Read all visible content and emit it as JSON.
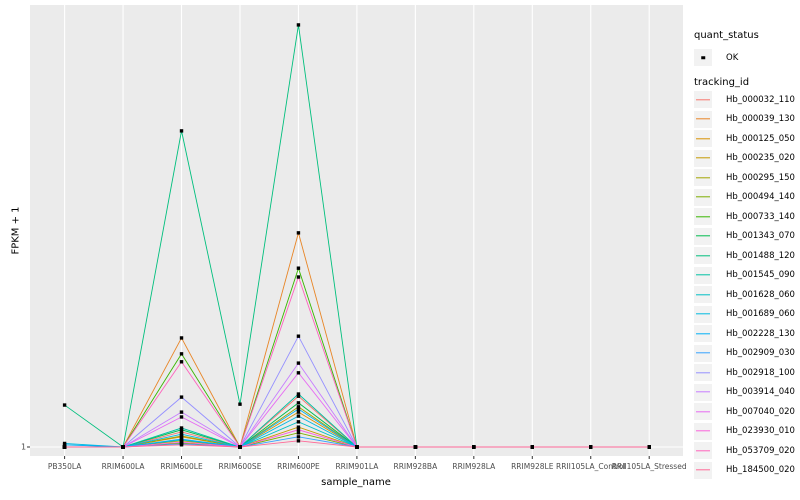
{
  "figure": {
    "background": "#FFFFFF",
    "panel_background": "#EBEBEB",
    "gridline_color": "#FFFFFF",
    "axis_text_color": "#4D4D4D",
    "point_color": "#000000"
  },
  "legend": {
    "quant_status_title": "quant_status",
    "quant_status_items": [
      {
        "label": "OK",
        "glyph": "black-point"
      }
    ],
    "tracking_id_title": "tracking_id"
  },
  "chart_data": {
    "type": "line",
    "title": "",
    "xlabel": "sample_name",
    "ylabel": "FPKM + 1",
    "y_ticks": [
      "1"
    ],
    "ylim_note": "only the value 1 is labeled on the y axis; series heights are stored as percent of panel height above the y=1 baseline",
    "grid": "gray panel with white major gridlines (ggplot style)",
    "legend_position": "right",
    "marker": {
      "shape": "small-black-square",
      "color": "#000000"
    },
    "categories": [
      "PB350LA",
      "RRIM600LA",
      "RRIM600LE",
      "RRIM600SE",
      "RRIM600PE",
      "RRIM901LA",
      "RRIM928BA",
      "RRIM928LA",
      "RRIM928LE",
      "RRII105LA_Control",
      "RRII105LA_Stressed"
    ],
    "series": [
      {
        "name": "Hb_000032_110",
        "color": "#F8766D",
        "values_pct": [
          0,
          0,
          3.4,
          0,
          11.5,
          0,
          0,
          0,
          0,
          0,
          0
        ]
      },
      {
        "name": "Hb_000039_130",
        "color": "#E88526",
        "values_pct": [
          0,
          0,
          24.7,
          0,
          48.5,
          0,
          0,
          0,
          0,
          0,
          0
        ]
      },
      {
        "name": "Hb_000125_050",
        "color": "#D89000",
        "values_pct": [
          0,
          0,
          2.3,
          0,
          7.9,
          0,
          0,
          0,
          0,
          0,
          0
        ]
      },
      {
        "name": "Hb_000235_020",
        "color": "#C49A00",
        "values_pct": [
          0,
          0,
          1.4,
          0,
          4.5,
          0,
          0,
          0,
          0,
          0,
          0
        ]
      },
      {
        "name": "Hb_000295_150",
        "color": "#A3A500",
        "values_pct": [
          0,
          0,
          2.5,
          0,
          9.1,
          0,
          0,
          0,
          0,
          0,
          0
        ]
      },
      {
        "name": "Hb_000494_140",
        "color": "#7CAE00",
        "values_pct": [
          0,
          0,
          0.9,
          0,
          3.2,
          0,
          0,
          0,
          0,
          0,
          0
        ]
      },
      {
        "name": "Hb_000733_140",
        "color": "#39B600",
        "values_pct": [
          0,
          0,
          21.1,
          0,
          40.5,
          0,
          0,
          0,
          0,
          0,
          0
        ]
      },
      {
        "name": "Hb_001343_070",
        "color": "#00BB4E",
        "values_pct": [
          0,
          0,
          3.9,
          0,
          10.0,
          0,
          0,
          0,
          0,
          0,
          0
        ]
      },
      {
        "name": "Hb_001488_120",
        "color": "#00BF7D",
        "values_pct": [
          9.5,
          0,
          71.6,
          9.7,
          95.6,
          0,
          0,
          0,
          0,
          0,
          0
        ]
      },
      {
        "name": "Hb_001545_090",
        "color": "#00C1A3",
        "values_pct": [
          0,
          0,
          4.3,
          0,
          12.0,
          0,
          0,
          0,
          0,
          0,
          0
        ]
      },
      {
        "name": "Hb_001628_060",
        "color": "#00BFC4",
        "values_pct": [
          0,
          0,
          1.6,
          0,
          5.7,
          0,
          0,
          0,
          0,
          0,
          0
        ]
      },
      {
        "name": "Hb_001689_060",
        "color": "#00BAE0",
        "values_pct": [
          0.8,
          0,
          2.9,
          0,
          7.0,
          0,
          0,
          0,
          0,
          0,
          0
        ]
      },
      {
        "name": "Hb_002228_130",
        "color": "#00B0F6",
        "values_pct": [
          0.5,
          0,
          1.8,
          0,
          8.6,
          0,
          0,
          0,
          0,
          0,
          0
        ]
      },
      {
        "name": "Hb_002909_030",
        "color": "#35A2FF",
        "values_pct": [
          0,
          0,
          0.7,
          0,
          2.3,
          0,
          0,
          0,
          0,
          0,
          0
        ]
      },
      {
        "name": "Hb_002918_100",
        "color": "#9590FF",
        "values_pct": [
          0,
          0,
          11.3,
          0,
          25.1,
          0,
          0,
          0,
          0,
          0,
          0
        ]
      },
      {
        "name": "Hb_003914_040",
        "color": "#C77CFF",
        "values_pct": [
          0,
          0,
          7.9,
          0,
          19.0,
          0,
          0,
          0,
          0,
          0,
          0
        ]
      },
      {
        "name": "Hb_007040_020",
        "color": "#E76BF3",
        "values_pct": [
          0,
          0,
          6.8,
          0,
          16.8,
          0,
          0,
          0,
          0,
          0,
          0
        ]
      },
      {
        "name": "Hb_023930_010",
        "color": "#FA62DB",
        "values_pct": [
          0,
          0,
          1.1,
          0,
          3.9,
          0,
          0,
          0,
          0,
          0,
          0
        ]
      },
      {
        "name": "Hb_053709_020",
        "color": "#FF62BC",
        "values_pct": [
          0,
          0,
          19.3,
          0,
          38.5,
          0,
          0,
          0,
          0,
          0,
          0
        ]
      },
      {
        "name": "Hb_184500_020",
        "color": "#FF6A98",
        "values_pct": [
          0,
          0,
          0.5,
          0,
          1.4,
          0,
          0,
          0,
          0,
          0,
          0
        ]
      }
    ]
  }
}
